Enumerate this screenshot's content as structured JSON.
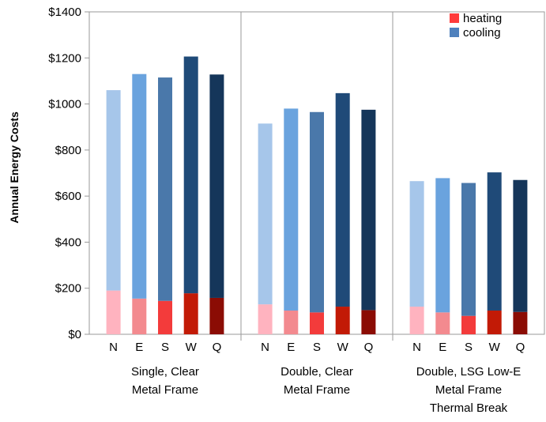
{
  "chart_data": {
    "type": "bar",
    "stacked": true,
    "ylabel": "Annual Energy Costs",
    "ylim": [
      0,
      1400
    ],
    "y_ticks": [
      0,
      200,
      400,
      600,
      800,
      1000,
      1200,
      1400
    ],
    "y_tick_labels": [
      "$0",
      "$200",
      "$400",
      "$600",
      "$800",
      "$1000",
      "$1200",
      "$1400"
    ],
    "grid": false,
    "legend": {
      "placement": "top-right",
      "entries": [
        {
          "label": "heating",
          "color": "#ff3b3b"
        },
        {
          "label": "cooling",
          "color": "#4f81bd"
        }
      ]
    },
    "groups": [
      {
        "label_lines": [
          "Single, Clear",
          "Metal Frame"
        ],
        "bars": [
          {
            "label": "N",
            "heating": 190,
            "cooling": 870,
            "heating_color": "#ffb3bf",
            "cooling_color": "#a6c6ea"
          },
          {
            "label": "E",
            "heating": 155,
            "cooling": 975,
            "heating_color": "#f38a8f",
            "cooling_color": "#6aa3de"
          },
          {
            "label": "S",
            "heating": 145,
            "cooling": 970,
            "heating_color": "#f33b3b",
            "cooling_color": "#4a78aa"
          },
          {
            "label": "W",
            "heating": 178,
            "cooling": 1028,
            "heating_color": "#c21a06",
            "cooling_color": "#1f4a78"
          },
          {
            "label": "Q",
            "heating": 158,
            "cooling": 970,
            "heating_color": "#8b0c04",
            "cooling_color": "#15365a"
          }
        ]
      },
      {
        "label_lines": [
          "Double, Clear",
          "Metal Frame"
        ],
        "bars": [
          {
            "label": "N",
            "heating": 130,
            "cooling": 785,
            "heating_color": "#ffb3bf",
            "cooling_color": "#a6c6ea"
          },
          {
            "label": "E",
            "heating": 103,
            "cooling": 877,
            "heating_color": "#f38a8f",
            "cooling_color": "#6aa3de"
          },
          {
            "label": "S",
            "heating": 95,
            "cooling": 870,
            "heating_color": "#f33b3b",
            "cooling_color": "#4a78aa"
          },
          {
            "label": "W",
            "heating": 120,
            "cooling": 927,
            "heating_color": "#c21a06",
            "cooling_color": "#1f4a78"
          },
          {
            "label": "Q",
            "heating": 105,
            "cooling": 870,
            "heating_color": "#8b0c04",
            "cooling_color": "#15365a"
          }
        ]
      },
      {
        "label_lines": [
          "Double, LSG Low-E",
          "Metal Frame",
          "Thermal Break"
        ],
        "bars": [
          {
            "label": "N",
            "heating": 120,
            "cooling": 545,
            "heating_color": "#ffb3bf",
            "cooling_color": "#a6c6ea"
          },
          {
            "label": "E",
            "heating": 95,
            "cooling": 583,
            "heating_color": "#f38a8f",
            "cooling_color": "#6aa3de"
          },
          {
            "label": "S",
            "heating": 80,
            "cooling": 577,
            "heating_color": "#f33b3b",
            "cooling_color": "#4a78aa"
          },
          {
            "label": "W",
            "heating": 103,
            "cooling": 600,
            "heating_color": "#c21a06",
            "cooling_color": "#1f4a78"
          },
          {
            "label": "Q",
            "heating": 97,
            "cooling": 573,
            "heating_color": "#8b0c04",
            "cooling_color": "#15365a"
          }
        ]
      }
    ]
  }
}
